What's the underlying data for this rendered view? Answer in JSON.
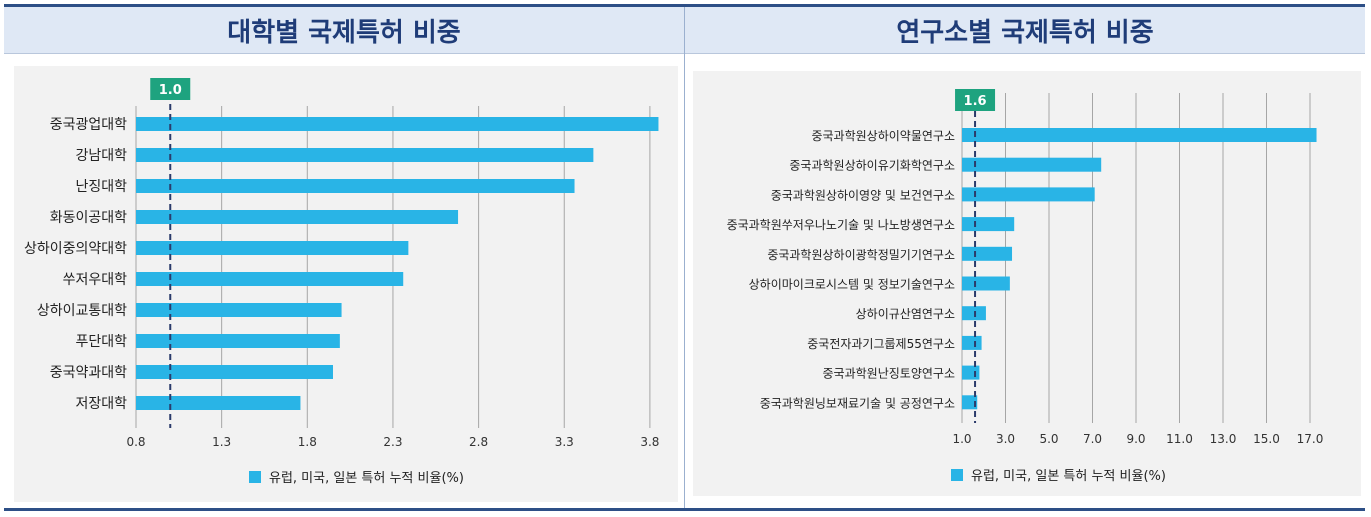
{
  "left_title": "대학별 국제특허 비중",
  "right_title": "연구소별 국제특허 비중",
  "chart_data": [
    {
      "type": "bar",
      "orientation": "horizontal",
      "categories": [
        "중국광업대학",
        "강남대학",
        "난징대학",
        "화동이공대학",
        "상하이중의약대학",
        "쑤저우대학",
        "상하이교통대학",
        "푸단대학",
        "중국약과대학",
        "저장대학"
      ],
      "values": [
        3.85,
        3.47,
        3.36,
        2.68,
        2.39,
        2.36,
        2.0,
        1.99,
        1.95,
        1.76
      ],
      "xticks": [
        "0.8",
        "1.3",
        "1.8",
        "2.3",
        "2.8",
        "3.3",
        "3.8"
      ],
      "xlim": [
        0.8,
        3.85
      ],
      "reference_line": {
        "value": 1.0,
        "label": "1.0"
      },
      "legend": "유럽, 미국, 일본 특허 누적 비율(%)",
      "bar_color": "#29b4e6",
      "ref_label_color": "#1ea37f"
    },
    {
      "type": "bar",
      "orientation": "horizontal",
      "categories": [
        "중국과학원상하이약물연구소",
        "중국과학원상하이유기화학연구소",
        "중국과학원상하이영양 및 보건연구소",
        "중국과학원쑤저우나노기술 및 나노방생연구소",
        "중국과학원상하이광학정밀기기연구소",
        "상하이마이크로시스템 및 정보기술연구소",
        "상하이규산염연구소",
        "중국전자과기그룹제55연구소",
        "중국과학원난징토양연구소",
        "중국과학원닝보재료기술 및 공정연구소"
      ],
      "values": [
        17.3,
        7.4,
        7.1,
        3.4,
        3.3,
        3.2,
        2.1,
        1.9,
        1.8,
        1.7
      ],
      "xticks": [
        "1.0",
        "3.0",
        "5.0",
        "7.0",
        "9.0",
        "11.0",
        "13.0",
        "15.0",
        "17.0"
      ],
      "xlim": [
        1.0,
        17.5
      ],
      "reference_line": {
        "value": 1.6,
        "label": "1.6"
      },
      "legend": "유럽, 미국, 일본 특허 누적 비율(%)",
      "bar_color": "#29b4e6",
      "ref_label_color": "#1ea37f"
    }
  ]
}
